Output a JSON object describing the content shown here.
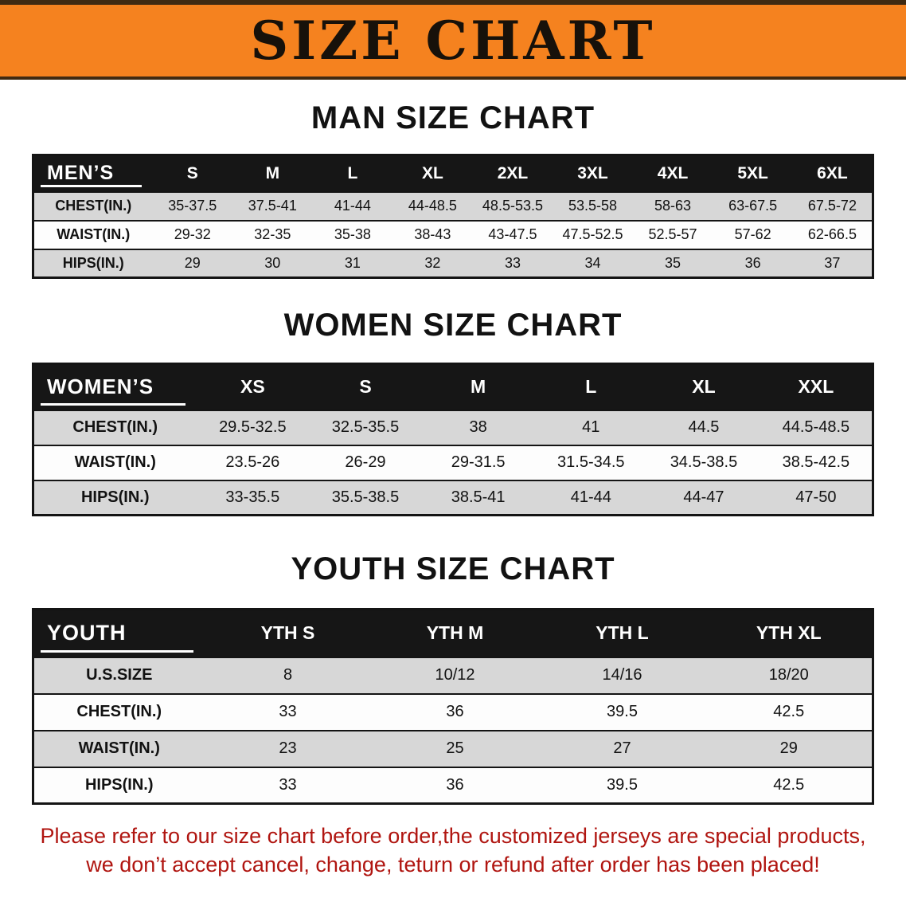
{
  "banner": {
    "title": "SIZE CHART",
    "bg_color": "#f5821f",
    "text_color": "#17110a"
  },
  "sections": [
    {
      "heading": "MAN SIZE CHART",
      "table": {
        "name": "mens",
        "header": [
          "MEN’S",
          "S",
          "M",
          "L",
          "XL",
          "2XL",
          "3XL",
          "4XL",
          "5XL",
          "6XL"
        ],
        "rows": [
          [
            "CHEST(IN.)",
            "35-37.5",
            "37.5-41",
            "41-44",
            "44-48.5",
            "48.5-53.5",
            "53.5-58",
            "58-63",
            "63-67.5",
            "67.5-72"
          ],
          [
            "WAIST(IN.)",
            "29-32",
            "32-35",
            "35-38",
            "38-43",
            "43-47.5",
            "47.5-52.5",
            "52.5-57",
            "57-62",
            "62-66.5"
          ],
          [
            "HIPS(IN.)",
            "29",
            "30",
            "31",
            "32",
            "33",
            "34",
            "35",
            "36",
            "37"
          ]
        ]
      }
    },
    {
      "heading": "WOMEN SIZE CHART",
      "table": {
        "name": "womens",
        "header": [
          "WOMEN’S",
          "XS",
          "S",
          "M",
          "L",
          "XL",
          "XXL"
        ],
        "rows": [
          [
            "CHEST(IN.)",
            "29.5-32.5",
            "32.5-35.5",
            "38",
            "41",
            "44.5",
            "44.5-48.5"
          ],
          [
            "WAIST(IN.)",
            "23.5-26",
            "26-29",
            "29-31.5",
            "31.5-34.5",
            "34.5-38.5",
            "38.5-42.5"
          ],
          [
            "HIPS(IN.)",
            "33-35.5",
            "35.5-38.5",
            "38.5-41",
            "41-44",
            "44-47",
            "47-50"
          ]
        ]
      }
    },
    {
      "heading": "YOUTH SIZE CHART",
      "table": {
        "name": "youth",
        "header": [
          "YOUTH",
          "YTH S",
          "YTH M",
          "YTH L",
          "YTH XL"
        ],
        "rows": [
          [
            "U.S.SIZE",
            "8",
            "10/12",
            "14/16",
            "18/20"
          ],
          [
            "CHEST(IN.)",
            "33",
            "36",
            "39.5",
            "42.5"
          ],
          [
            "WAIST(IN.)",
            "23",
            "25",
            "27",
            "29"
          ],
          [
            "HIPS(IN.)",
            "33",
            "36",
            "39.5",
            "42.5"
          ]
        ]
      }
    }
  ],
  "footer": {
    "line1": "Please refer to our size chart before order,the customized jerseys are special products,",
    "line2": "we don’t accept cancel, change, teturn or refund after order has been placed!",
    "text_color": "#b01510"
  }
}
